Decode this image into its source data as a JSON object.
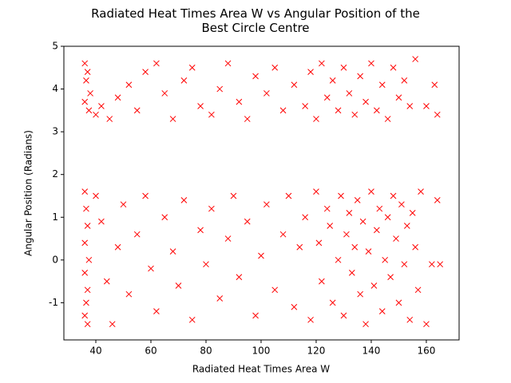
{
  "chart_data": {
    "type": "scatter",
    "title": "Radiated Heat Times Area W vs Angular Position of the Best Circle Centre",
    "x_label": "Radiated Heat Times Area W",
    "y_label": "Angular Position (Radians)",
    "color": "#ff0000",
    "marker": "x",
    "xlim": [
      28.4,
      171.9
    ],
    "ylim": [
      -1.87,
      5
    ],
    "xticks": [
      40,
      60,
      80,
      100,
      120,
      140,
      160
    ],
    "yticks": [
      -1,
      0,
      1,
      2,
      3,
      4,
      5
    ],
    "x": [
      36,
      37,
      36.5,
      38,
      36,
      37.5,
      40,
      42,
      45,
      48,
      52,
      55,
      58,
      62,
      65,
      68,
      72,
      75,
      78,
      82,
      85,
      88,
      92,
      95,
      98,
      102,
      105,
      108,
      112,
      116,
      118,
      120,
      122,
      124,
      126,
      128,
      130,
      132,
      134,
      136,
      138,
      140,
      142,
      144,
      146,
      148,
      150,
      152,
      154,
      156,
      160,
      163,
      164,
      36,
      36.5,
      37,
      36,
      37.5,
      36,
      37,
      36.5,
      36,
      37,
      40,
      42,
      44,
      46,
      48,
      50,
      52,
      55,
      58,
      60,
      62,
      65,
      68,
      70,
      72,
      75,
      78,
      80,
      82,
      85,
      88,
      90,
      92,
      95,
      98,
      100,
      102,
      105,
      108,
      110,
      112,
      114,
      116,
      118,
      120,
      121,
      122,
      124,
      125,
      126,
      128,
      129,
      130,
      131,
      132,
      133,
      134,
      135,
      136,
      137,
      138,
      139,
      140,
      141,
      142,
      143,
      144,
      145,
      146,
      147,
      148,
      149,
      150,
      151,
      152,
      153,
      154,
      155,
      156,
      157,
      158,
      160,
      162,
      164,
      165
    ],
    "y": [
      4.6,
      4.4,
      4.2,
      3.9,
      3.7,
      3.5,
      3.4,
      3.6,
      3.3,
      3.8,
      4.1,
      3.5,
      4.4,
      4.6,
      3.9,
      3.3,
      4.2,
      4.5,
      3.6,
      3.4,
      4.0,
      4.6,
      3.7,
      3.3,
      4.3,
      3.9,
      4.5,
      3.5,
      4.1,
      3.6,
      4.4,
      3.3,
      4.6,
      3.8,
      4.2,
      3.5,
      4.5,
      3.9,
      3.4,
      4.3,
      3.7,
      4.6,
      3.5,
      4.1,
      3.3,
      4.5,
      3.8,
      4.2,
      3.6,
      4.7,
      3.6,
      4.1,
      3.4,
      1.6,
      1.2,
      0.8,
      0.4,
      0,
      -0.3,
      -0.7,
      -1.0,
      -1.3,
      -1.5,
      1.5,
      0.9,
      -0.5,
      -1.5,
      0.3,
      1.3,
      -0.8,
      0.6,
      1.5,
      -0.2,
      -1.2,
      1.0,
      0.2,
      -0.6,
      1.4,
      -1.4,
      0.7,
      -0.1,
      1.2,
      -0.9,
      0.5,
      1.5,
      -0.4,
      0.9,
      -1.3,
      0.1,
      1.3,
      -0.7,
      0.6,
      1.5,
      -1.1,
      0.3,
      1.0,
      -1.4,
      1.6,
      0.4,
      -0.5,
      1.2,
      0.8,
      -1.0,
      0.0,
      1.5,
      -1.3,
      0.6,
      1.1,
      -0.3,
      0.3,
      1.4,
      -0.8,
      0.9,
      -1.5,
      0.2,
      1.6,
      -0.6,
      0.7,
      1.2,
      -1.2,
      0.0,
      1.0,
      -0.4,
      1.5,
      0.5,
      -1.0,
      1.3,
      -0.1,
      0.8,
      -1.4,
      1.1,
      0.3,
      -0.7,
      1.6,
      -1.5,
      -0.1,
      1.4,
      -0.1
    ]
  }
}
